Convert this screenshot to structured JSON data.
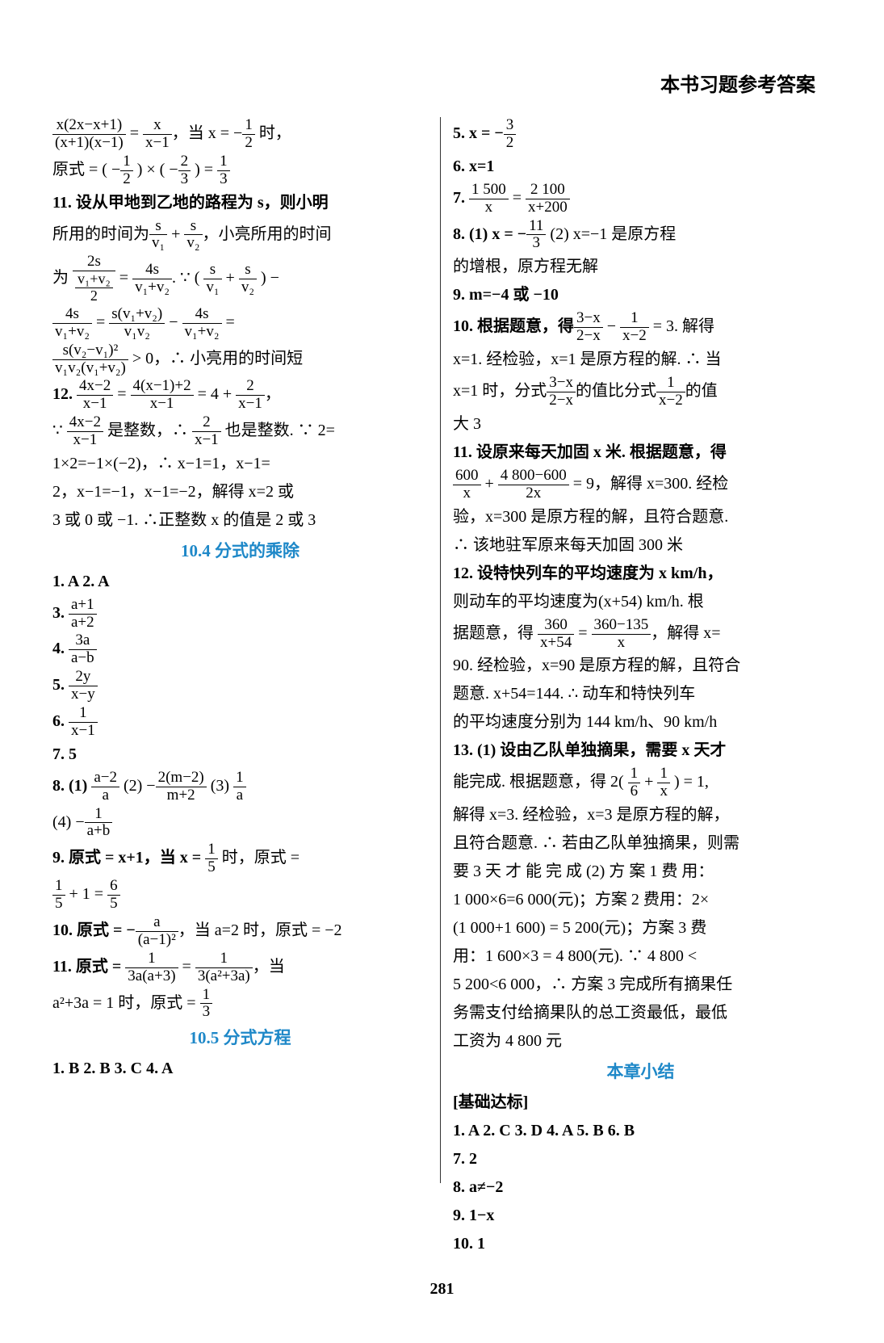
{
  "header": {
    "title": "本书习题参考答案"
  },
  "pageNumber": "281",
  "sectionHeadings": {
    "s10_4": "10.4  分式的乘除",
    "s10_5": "10.5  分式方程",
    "chapterSummary": "本章小结"
  },
  "leftColumn": {
    "l1": "x(2x−x+1)",
    "l1d": "(x+1)(x−1)",
    "l1r": "x",
    "l1rd": "x−1",
    "l1text": "，当 x = −",
    "l1f": "1",
    "l1fd": "2",
    "l1end": " 时，",
    "l2a": "原式 = ( −",
    "l2f1n": "1",
    "l2f1d": "2",
    "l2b": " ) × ( −",
    "l2f2n": "2",
    "l2f2d": "3",
    "l2c": " ) = ",
    "l2f3n": "1",
    "l2f3d": "3",
    "l3": "11. 设从甲地到乙地的路程为 s，则小明",
    "l4a": "所用的时间为",
    "l4f1n": "s",
    "l4f1d": "v₁",
    "l4b": " + ",
    "l4f2n": "s",
    "l4f2d": "v₂",
    "l4c": "，小亮所用的时间",
    "l5a": "为 ",
    "l5f1n": "2s",
    "l5f1d1": "v₁+v₂",
    "l5f1d2": "2",
    "l5b": " = ",
    "l5f2n": "4s",
    "l5f2d": "v₁+v₂",
    "l5c": ".  ∵  ( ",
    "l5f3n": "s",
    "l5f3d": "v₁",
    "l5d": " + ",
    "l5f4n": "s",
    "l5f4d": "v₂",
    "l5e": " ) −",
    "l6f1n": "4s",
    "l6f1d": "v₁+v₂",
    "l6a": " = ",
    "l6f2n": "s(v₁+v₂)",
    "l6f2d": "v₁v₂",
    "l6b": " − ",
    "l6f3n": "4s",
    "l6f3d": "v₁+v₂",
    "l6c": " =",
    "l7f1n": "s(v₂−v₁)²",
    "l7f1d": "v₁v₂(v₁+v₂)",
    "l7a": " > 0，∴ 小亮用的时间短",
    "l8a": "12.  ",
    "l8f1n": "4x−2",
    "l8f1d": "x−1",
    "l8b": " = ",
    "l8f2n": "4(x−1)+2",
    "l8f2d": "x−1",
    "l8c": " = 4 + ",
    "l8f3n": "2",
    "l8f3d": "x−1",
    "l8d": "，",
    "l9a": "∵ ",
    "l9f1n": "4x−2",
    "l9f1d": "x−1",
    "l9b": " 是整数，∴ ",
    "l9f2n": "2",
    "l9f2d": "x−1",
    "l9c": " 也是整数. ∵ 2=",
    "l10": "1×2=−1×(−2)，∴  x−1=1，x−1=",
    "l11": "2，x−1=−1，x−1=−2，解得 x=2 或",
    "l12": "3 或 0 或 −1. ∴正整数 x 的值是 2 或 3",
    "l13": "1. A  2. A",
    "l14a": "3. ",
    "l14n": "a+1",
    "l14d": "a+2",
    "l15a": "4. ",
    "l15n": "3a",
    "l15d": "a−b",
    "l16a": "5. ",
    "l16n": "2y",
    "l16d": "x−y",
    "l17a": "6. ",
    "l17n": "1",
    "l17d": "x−1",
    "l18": "7. 5",
    "l19a": "8. (1) ",
    "l19f1n": "a−2",
    "l19f1d": "a",
    "l19b": "  (2) −",
    "l19f2n": "2(m−2)",
    "l19f2d": "m+2",
    "l19c": "  (3) ",
    "l19f3n": "1",
    "l19f3d": "a",
    "l20a": "(4) −",
    "l20n": "1",
    "l20d": "a+b",
    "l21a": "9. 原式 = x+1，当 x = ",
    "l21n": "1",
    "l21d": "5",
    "l21b": " 时，原式 =",
    "l22f1n": "1",
    "l22f1d": "5",
    "l22a": " + 1 = ",
    "l22f2n": "6",
    "l22f2d": "5",
    "l23a": "10. 原式 = −",
    "l23n": "a",
    "l23d": "(a−1)²",
    "l23b": "，当 a=2 时，原式 = −2",
    "l24a": "11. 原式 = ",
    "l24f1n": "1",
    "l24f1d": "3a(a+3)",
    "l24b": " = ",
    "l24f2n": "1",
    "l24f2d": "3(a²+3a)",
    "l24c": "，当",
    "l25a": "a²+3a = 1 时，原式 = ",
    "l25n": "1",
    "l25d": "3",
    "l26": "1. B  2. B  3. C  4. A"
  },
  "rightColumn": {
    "r1a": "5. x = −",
    "r1n": "3",
    "r1d": "2",
    "r2": "6. x=1",
    "r3a": "7. ",
    "r3f1n": "1 500",
    "r3f1d": "x",
    "r3b": " = ",
    "r3f2n": "2 100",
    "r3f2d": "x+200",
    "r4a": "8. (1) x = −",
    "r4n": "11",
    "r4d": "3",
    "r4b": "  (2) x=−1 是原方程",
    "r5": "的增根，原方程无解",
    "r6": "9. m=−4 或 −10",
    "r7a": "10. 根据题意，得",
    "r7f1n": "3−x",
    "r7f1d": "2−x",
    "r7b": " − ",
    "r7f2n": "1",
    "r7f2d": "x−2",
    "r7c": " = 3. 解得",
    "r8": "x=1. 经检验，x=1 是原方程的解. ∴ 当",
    "r9a": "x=1 时，分式",
    "r9f1n": "3−x",
    "r9f1d": "2−x",
    "r9b": "的值比分式",
    "r9f2n": "1",
    "r9f2d": "x−2",
    "r9c": "的值",
    "r10": "大 3",
    "r11": "11. 设原来每天加固 x 米. 根据题意，得",
    "r12f1n": "600",
    "r12f1d": "x",
    "r12a": " + ",
    "r12f2n": "4 800−600",
    "r12f2d": "2x",
    "r12b": " = 9，解得 x=300. 经检",
    "r13": "验，x=300 是原方程的解，且符合题意.",
    "r14": "∴ 该地驻军原来每天加固 300 米",
    "r15": "12. 设特快列车的平均速度为 x km/h，",
    "r16": "则动车的平均速度为(x+54) km/h. 根",
    "r17a": "据题意，得 ",
    "r17f1n": "360",
    "r17f1d": "x+54",
    "r17b": " = ",
    "r17f2n": "360−135",
    "r17f2d": "x",
    "r17c": "，解得 x=",
    "r18": "90. 经检验，x=90 是原方程的解，且符合",
    "r19": "题意. x+54=144. ∴ 动车和特快列车",
    "r20": "的平均速度分别为 144 km/h、90 km/h",
    "r21": "13. (1) 设由乙队单独摘果，需要 x 天才",
    "r22a": "能完成. 根据题意，得 2( ",
    "r22f1n": "1",
    "r22f1d": "6",
    "r22b": " + ",
    "r22f2n": "1",
    "r22f2d": "x",
    "r22c": " ) = 1,",
    "r23": "解得 x=3. 经检验，x=3 是原方程的解，",
    "r24": "且符合题意. ∴ 若由乙队单独摘果，则需",
    "r25": "要 3 天 才 能 完 成  (2) 方 案 1 费 用：",
    "r26": "1 000×6=6 000(元)；方案 2 费用：2×",
    "r27": "(1 000+1 600) = 5 200(元)；方案 3 费",
    "r28": "用：1 600×3 = 4 800(元). ∵ 4 800 <",
    "r29": "5 200<6 000，∴ 方案 3 完成所有摘果任",
    "r30": "务需支付给摘果队的总工资最低，最低",
    "r31": "工资为 4 800 元",
    "r32": "[基础达标]",
    "r33": "1. A  2. C  3. D  4. A  5. B  6. B",
    "r34": "7. 2",
    "r35": "8. a≠−2",
    "r36": "9. 1−x",
    "r37": "10. 1"
  },
  "colors": {
    "heading": "#1e88c8",
    "text": "#000000",
    "background": "#ffffff"
  },
  "typography": {
    "bodyFontSize": 20,
    "headingFontSize": 21,
    "titleFontSize": 24,
    "lineHeight": 1.65
  }
}
